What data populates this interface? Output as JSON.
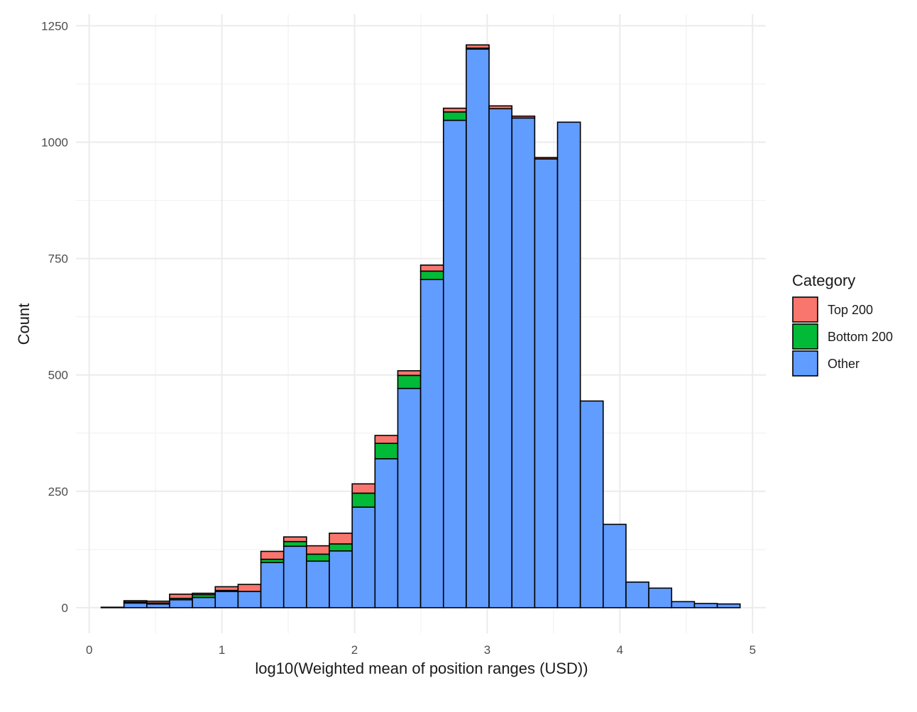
{
  "chart_data": {
    "type": "bar",
    "subtype": "stacked-histogram",
    "title": "",
    "xlabel": "log10(Weighted mean of position ranges (USD))",
    "ylabel": "Count",
    "xlim": [
      -0.1,
      5.1
    ],
    "ylim": [
      -55,
      1275
    ],
    "x_ticks": [
      0,
      1,
      2,
      3,
      4,
      5
    ],
    "x_tick_labels": [
      "0",
      "1",
      "2",
      "3",
      "4",
      "5"
    ],
    "y_ticks": [
      0,
      250,
      500,
      750,
      1000,
      1250
    ],
    "y_tick_labels": [
      "0",
      "250",
      "500",
      "750",
      "1000",
      "1250"
    ],
    "grid": true,
    "legend": {
      "title": "Category",
      "position": "right",
      "entries": [
        "Top 200",
        "Bottom 200",
        "Other"
      ]
    },
    "bin_width": 0.172,
    "bin_starts": [
      0.09,
      0.262,
      0.434,
      0.606,
      0.778,
      0.95,
      1.122,
      1.294,
      1.466,
      1.638,
      1.81,
      1.982,
      2.154,
      2.326,
      2.498,
      2.67,
      2.842,
      3.014,
      3.186,
      3.358,
      3.53,
      3.702,
      3.874,
      4.046,
      4.218,
      4.39,
      4.562,
      4.734
    ],
    "series": [
      {
        "name": "Other",
        "color": "#619CFF",
        "values": [
          1,
          10,
          8,
          17,
          22,
          35,
          35,
          97,
          132,
          100,
          122,
          216,
          320,
          471,
          705,
          1047,
          1200,
          1072,
          1052,
          964,
          1043,
          444,
          179,
          55,
          42,
          13,
          9,
          8
        ]
      },
      {
        "name": "Bottom 200",
        "color": "#00BA38",
        "values": [
          0,
          2,
          2,
          3,
          6,
          2,
          0,
          7,
          10,
          15,
          15,
          30,
          33,
          28,
          18,
          18,
          2,
          0,
          0,
          0,
          0,
          0,
          0,
          0,
          0,
          0,
          0,
          0
        ]
      },
      {
        "name": "Top 200",
        "color": "#F8766D",
        "values": [
          0,
          3,
          4,
          9,
          3,
          8,
          15,
          17,
          10,
          18,
          23,
          20,
          17,
          10,
          13,
          8,
          7,
          6,
          4,
          3,
          0,
          0,
          0,
          0,
          0,
          0,
          0,
          0
        ]
      }
    ]
  }
}
